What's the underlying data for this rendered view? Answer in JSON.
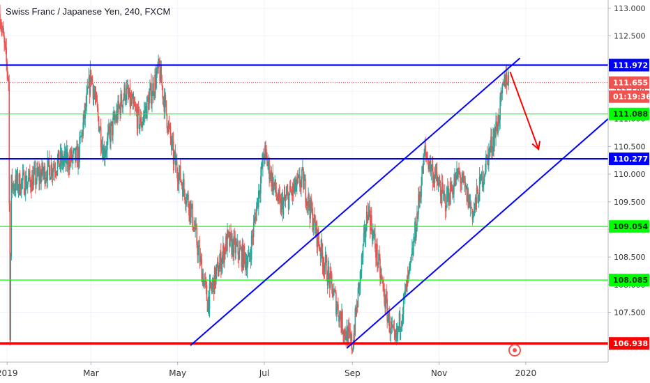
{
  "header": {
    "symbol_title": "Swiss Franc / Japanese Yen, 240, FXCM"
  },
  "colors": {
    "up_candle": "#26a69a",
    "down_candle": "#ef5350",
    "resistance_line": "#0000ff",
    "support_line": "#ff0000",
    "minor_level": "#00ff00",
    "projection_arrow": "#ff0000",
    "countdown_badge": "#ef5350"
  },
  "badges": {
    "last_price": "111.655",
    "countdown": "01:19:36"
  },
  "chart_data": {
    "type": "candlestick",
    "y_axis": {
      "range": [
        106.6,
        113.15
      ],
      "ticks": [
        107.5,
        108.0,
        108.5,
        109.0,
        109.5,
        110.0,
        110.5,
        111.0,
        111.5,
        112.0,
        112.5,
        113.0
      ],
      "tick_labels": [
        "107.500",
        "108.000",
        "108.500",
        "109.000",
        "109.500",
        "110.000",
        "110.500",
        "111.000",
        "111.500",
        "112.000",
        "112.500",
        "113.000"
      ]
    },
    "x_axis": {
      "range": [
        "2018-12-27",
        "2020-02-28"
      ],
      "ticks": [
        "2019-01-01",
        "2019-03-01",
        "2019-05-01",
        "2019-07-01",
        "2019-09-01",
        "2019-11-01",
        "2020-01-01"
      ],
      "tick_labels": [
        "2019",
        "Mar",
        "May",
        "Jul",
        "Sep",
        "Nov",
        "2020"
      ]
    },
    "price_path": [
      {
        "t": "2018-12-27",
        "p": 112.9
      },
      {
        "t": "2019-01-02",
        "p": 111.7
      },
      {
        "t": "2019-01-03",
        "p": 107.2
      },
      {
        "t": "2019-01-04",
        "p": 109.8
      },
      {
        "t": "2019-01-20",
        "p": 109.9
      },
      {
        "t": "2019-02-05",
        "p": 110.2
      },
      {
        "t": "2019-02-20",
        "p": 110.3
      },
      {
        "t": "2019-03-01",
        "p": 111.8
      },
      {
        "t": "2019-03-10",
        "p": 110.4
      },
      {
        "t": "2019-03-25",
        "p": 111.5
      },
      {
        "t": "2019-04-05",
        "p": 110.9
      },
      {
        "t": "2019-04-18",
        "p": 111.9
      },
      {
        "t": "2019-04-28",
        "p": 110.3
      },
      {
        "t": "2019-05-10",
        "p": 109.4
      },
      {
        "t": "2019-05-22",
        "p": 107.7
      },
      {
        "t": "2019-06-05",
        "p": 108.8
      },
      {
        "t": "2019-06-20",
        "p": 108.4
      },
      {
        "t": "2019-07-01",
        "p": 110.4
      },
      {
        "t": "2019-07-12",
        "p": 109.4
      },
      {
        "t": "2019-07-28",
        "p": 109.9
      },
      {
        "t": "2019-08-10",
        "p": 108.6
      },
      {
        "t": "2019-08-26",
        "p": 107.2
      },
      {
        "t": "2019-09-01",
        "p": 106.9
      },
      {
        "t": "2019-09-12",
        "p": 109.4
      },
      {
        "t": "2019-09-27",
        "p": 107.3
      },
      {
        "t": "2019-10-01",
        "p": 106.9
      },
      {
        "t": "2019-10-12",
        "p": 108.3
      },
      {
        "t": "2019-10-22",
        "p": 110.4
      },
      {
        "t": "2019-11-05",
        "p": 109.5
      },
      {
        "t": "2019-11-15",
        "p": 110.0
      },
      {
        "t": "2019-11-25",
        "p": 109.3
      },
      {
        "t": "2019-12-05",
        "p": 110.3
      },
      {
        "t": "2019-12-12",
        "p": 110.9
      },
      {
        "t": "2019-12-18",
        "p": 111.8
      },
      {
        "t": "2019-12-20",
        "p": 111.655
      }
    ],
    "horizontal_levels": [
      {
        "price": 111.972,
        "label": "111.972",
        "style": "resistance",
        "label_bg": "#0000ff"
      },
      {
        "price": 110.277,
        "label": "110.277",
        "style": "resistance",
        "label_bg": "#0000ff"
      },
      {
        "price": 111.088,
        "label": "111.088",
        "style": "minor",
        "label_bg": "#00ff00"
      },
      {
        "price": 109.054,
        "label": "109.054",
        "style": "minor",
        "label_bg": "#00ff00"
      },
      {
        "price": 108.085,
        "label": "108.085",
        "style": "minor",
        "label_bg": "#00ff00"
      },
      {
        "price": 106.938,
        "label": "106.938",
        "style": "support",
        "label_bg": "#ff0000"
      }
    ],
    "last_price_line": 111.655,
    "trend_lines": [
      {
        "from": {
          "t": "2019-05-10",
          "p": 106.9
        },
        "to": {
          "t": "2019-12-28",
          "p": 112.1
        }
      },
      {
        "from": {
          "t": "2019-08-28",
          "p": 106.85
        },
        "to": {
          "t": "2020-02-28",
          "p": 111.0
        }
      }
    ],
    "arrow": {
      "from": {
        "t": "2019-12-21",
        "p": 111.85
      },
      "to": {
        "t": "2020-01-10",
        "p": 110.45
      }
    },
    "grid": true
  }
}
